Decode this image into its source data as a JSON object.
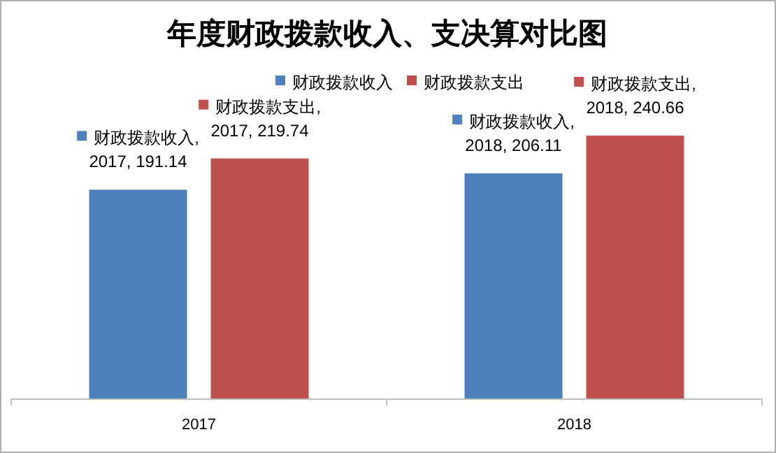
{
  "chart_data": {
    "type": "bar",
    "title": "年度财政拨款收入、支决算对比图",
    "categories": [
      "2017",
      "2018"
    ],
    "series": [
      {
        "name": "财政拨款收入",
        "color": "#4f81bd",
        "values": [
          191.14,
          206.11
        ],
        "value_labels": [
          "财政拨款收入, 2017, 191.14",
          "财政拨款收入, 2018, 206.11"
        ]
      },
      {
        "name": "财政拨款支出",
        "color": "#c0504d",
        "values": [
          219.74,
          240.66
        ],
        "value_labels": [
          "财政拨款支出, 2017, 219.74",
          "财政拨款支出, 2018, 240.66"
        ]
      }
    ],
    "legend": "top"
  }
}
